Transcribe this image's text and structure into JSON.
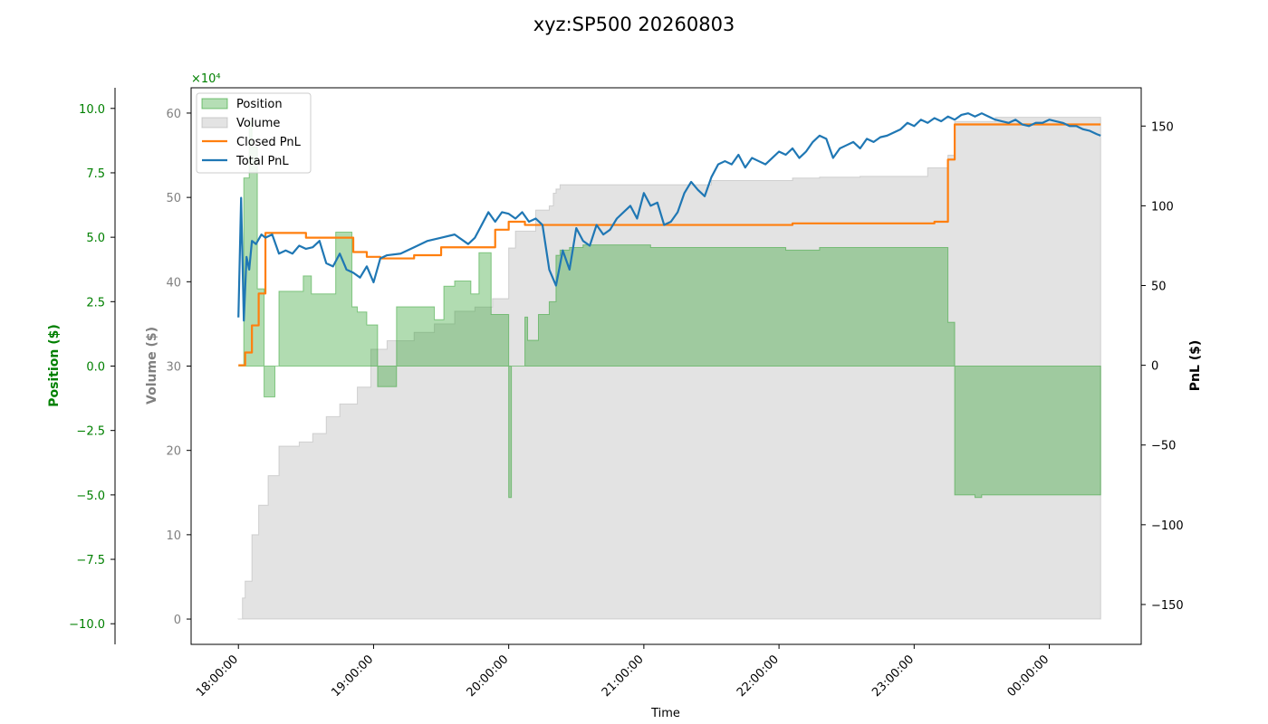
{
  "chart_data": {
    "type": "area",
    "title": "xyz:SP500 20260803",
    "xlabel": "Time",
    "x_ticks": [
      "18:00:00",
      "19:00:00",
      "20:00:00",
      "21:00:00",
      "22:00:00",
      "23:00:00",
      "00:00:00"
    ],
    "x_range_hours": [
      17.65,
      24.68
    ],
    "axes": {
      "position": {
        "label": "Position ($)",
        "range": [
          -10.8,
          10.8
        ],
        "ticks": [
          "−10.0",
          "−7.5",
          "−5.0",
          "−2.5",
          "0.0",
          "2.5",
          "5.0",
          "7.5",
          "10.0"
        ],
        "tick_values": [
          -10,
          -7.5,
          -5,
          -2.5,
          0,
          2.5,
          5,
          7.5,
          10
        ],
        "multiplier": "×10⁴",
        "color": "#008000"
      },
      "volume": {
        "label": "Volume ($)",
        "range": [
          -3,
          63
        ],
        "ticks": [
          "0",
          "10",
          "20",
          "30",
          "40",
          "50",
          "60"
        ],
        "tick_values": [
          0,
          10,
          20,
          30,
          40,
          50,
          60
        ],
        "color": "#808080"
      },
      "pnl": {
        "label": "PnL ($)",
        "range": [
          -175,
          174
        ],
        "ticks": [
          "−150",
          "−100",
          "−50",
          "0",
          "50",
          "100",
          "150"
        ],
        "tick_values": [
          -150,
          -100,
          -50,
          0,
          50,
          100,
          150
        ],
        "color": "#000000"
      }
    },
    "legend": {
      "placement": "top-left",
      "entries": [
        "Position",
        "Volume",
        "Closed PnL",
        "Total PnL"
      ]
    },
    "colors": {
      "position": "#2ca02c",
      "volume": "#b0b0b0",
      "closed_pnl": "#ff7f0e",
      "total_pnl": "#1f77b4"
    },
    "series": [
      {
        "name": "Position",
        "axis": "position",
        "step": true,
        "x": [
          18.0,
          18.04,
          18.08,
          18.1,
          18.14,
          18.19,
          18.27,
          18.3,
          18.42,
          18.48,
          18.54,
          18.72,
          18.84,
          18.88,
          18.95,
          19.03,
          19.17,
          19.45,
          19.52,
          19.6,
          19.72,
          19.78,
          19.87,
          20.0,
          20.02,
          20.12,
          20.14,
          20.22,
          20.3,
          20.35,
          20.38,
          20.45,
          20.55,
          20.8,
          21.05,
          21.35,
          21.5,
          22.05,
          22.3,
          22.35,
          23.13,
          23.25,
          23.3,
          23.45,
          23.5,
          23.6,
          24.38
        ],
        "y": [
          0,
          7.3,
          9.5,
          8.5,
          3.0,
          -1.2,
          0,
          2.9,
          2.9,
          3.5,
          2.8,
          5.2,
          2.3,
          2.1,
          1.6,
          -0.8,
          2.3,
          1.8,
          3.1,
          3.3,
          2.8,
          4.4,
          2.0,
          -5.1,
          0,
          1.9,
          1.0,
          2.0,
          2.5,
          4.3,
          4.5,
          4.6,
          4.7,
          4.7,
          4.6,
          4.6,
          4.6,
          4.5,
          4.6,
          4.6,
          4.6,
          1.7,
          -5.0,
          -5.1,
          -5.0,
          -5.0,
          -5.0
        ]
      },
      {
        "name": "Volume",
        "axis": "volume",
        "step": true,
        "x": [
          18.0,
          18.03,
          18.05,
          18.1,
          18.15,
          18.22,
          18.3,
          18.45,
          18.55,
          18.65,
          18.75,
          18.88,
          18.98,
          19.1,
          19.3,
          19.45,
          19.6,
          19.75,
          19.88,
          20.0,
          20.05,
          20.2,
          20.3,
          20.33,
          20.35,
          20.38,
          20.5,
          21.0,
          21.5,
          22.1,
          22.3,
          22.6,
          23.1,
          23.25,
          23.3,
          23.6,
          24.38
        ],
        "y": [
          0,
          2.5,
          4.5,
          10,
          13.5,
          17,
          20.5,
          21,
          22,
          24,
          25.5,
          27.5,
          32,
          33,
          34,
          35,
          36.5,
          37,
          38,
          44,
          46,
          48.5,
          49,
          50.5,
          51,
          51.5,
          51.5,
          51.5,
          52,
          52.3,
          52.4,
          52.5,
          53.5,
          55,
          59,
          59.5,
          59.5
        ]
      },
      {
        "name": "Closed PnL",
        "axis": "pnl",
        "step": true,
        "x": [
          18.0,
          18.05,
          18.1,
          18.15,
          18.2,
          18.5,
          18.85,
          18.95,
          19.05,
          19.3,
          19.5,
          19.9,
          20.0,
          20.12,
          20.5,
          21.0,
          21.5,
          22.1,
          22.3,
          23.15,
          23.25,
          23.3,
          24.38
        ],
        "y": [
          0,
          8,
          25,
          45,
          83,
          80,
          71,
          68,
          67,
          69,
          74,
          85,
          90,
          88,
          88,
          88,
          88,
          89,
          89,
          90,
          129,
          151,
          151
        ]
      },
      {
        "name": "Total PnL",
        "axis": "pnl",
        "step": false,
        "x": [
          18.0,
          18.02,
          18.04,
          18.06,
          18.08,
          18.1,
          18.13,
          18.17,
          18.2,
          18.25,
          18.3,
          18.35,
          18.4,
          18.45,
          18.5,
          18.55,
          18.6,
          18.65,
          18.7,
          18.75,
          18.8,
          18.85,
          18.9,
          18.95,
          19.0,
          19.05,
          19.1,
          19.2,
          19.3,
          19.4,
          19.5,
          19.6,
          19.7,
          19.75,
          19.8,
          19.85,
          19.9,
          19.95,
          20.0,
          20.05,
          20.1,
          20.15,
          20.2,
          20.25,
          20.3,
          20.35,
          20.4,
          20.45,
          20.5,
          20.55,
          20.6,
          20.65,
          20.7,
          20.75,
          20.8,
          20.85,
          20.9,
          20.95,
          21.0,
          21.05,
          21.1,
          21.15,
          21.2,
          21.25,
          21.3,
          21.35,
          21.4,
          21.45,
          21.5,
          21.55,
          21.6,
          21.65,
          21.7,
          21.75,
          21.8,
          21.85,
          21.9,
          21.95,
          22.0,
          22.05,
          22.1,
          22.15,
          22.2,
          22.25,
          22.3,
          22.35,
          22.4,
          22.45,
          22.5,
          22.55,
          22.6,
          22.65,
          22.7,
          22.75,
          22.8,
          22.85,
          22.9,
          22.95,
          23.0,
          23.05,
          23.1,
          23.15,
          23.2,
          23.25,
          23.3,
          23.35,
          23.4,
          23.45,
          23.5,
          23.55,
          23.6,
          23.65,
          23.7,
          23.75,
          23.8,
          23.85,
          23.9,
          23.95,
          24.0,
          24.05,
          24.1,
          24.15,
          24.2,
          24.25,
          24.3,
          24.35,
          24.38
        ],
        "y": [
          30,
          105,
          28,
          68,
          60,
          78,
          76,
          82,
          80,
          82,
          70,
          72,
          70,
          75,
          73,
          74,
          78,
          64,
          62,
          70,
          60,
          58,
          55,
          62,
          52,
          67,
          69,
          70,
          74,
          78,
          80,
          82,
          76,
          80,
          88,
          96,
          90,
          96,
          95,
          92,
          96,
          90,
          92,
          88,
          60,
          50,
          72,
          60,
          86,
          78,
          75,
          88,
          82,
          85,
          92,
          96,
          100,
          92,
          108,
          100,
          102,
          88,
          90,
          96,
          108,
          115,
          110,
          106,
          118,
          126,
          128,
          126,
          132,
          124,
          130,
          128,
          126,
          130,
          134,
          132,
          136,
          130,
          134,
          140,
          144,
          142,
          130,
          136,
          138,
          140,
          136,
          142,
          140,
          143,
          144,
          146,
          148,
          152,
          150,
          154,
          152,
          155,
          153,
          156,
          154,
          157,
          158,
          156,
          158,
          156,
          154,
          153,
          152,
          154,
          151,
          150,
          152,
          152,
          154,
          153,
          152,
          150,
          150,
          148,
          147,
          145,
          144
        ]
      }
    ]
  }
}
